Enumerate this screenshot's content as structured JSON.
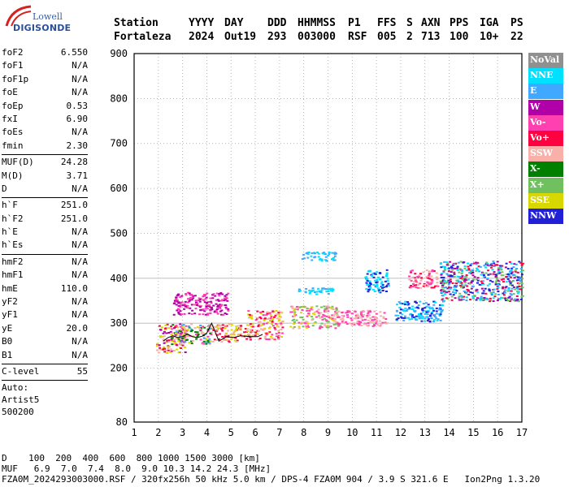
{
  "logo": {
    "line1": "Lowell",
    "line2": "DIGISONDE"
  },
  "header": {
    "labels": [
      "Station",
      "YYYY",
      "DAY",
      "DDD",
      "HHMMSS",
      "P1",
      "FFS",
      "S",
      "AXN",
      "PPS",
      "IGA",
      "PS"
    ],
    "values": [
      "Fortaleza",
      "2024",
      "Out19",
      "293",
      "003000",
      "RSF",
      "005",
      "2",
      "713",
      "100",
      "10+",
      "22"
    ]
  },
  "params": {
    "group1": [
      {
        "k": "foF2",
        "v": "6.550"
      },
      {
        "k": "foF1",
        "v": "N/A"
      },
      {
        "k": "foF1p",
        "v": "N/A"
      },
      {
        "k": "foE",
        "v": "N/A"
      },
      {
        "k": "foEp",
        "v": "0.53"
      },
      {
        "k": "fxI",
        "v": "6.90"
      },
      {
        "k": "foEs",
        "v": "N/A"
      },
      {
        "k": "fmin",
        "v": "2.30"
      }
    ],
    "group2": [
      {
        "k": "MUF(D)",
        "v": "24.28"
      },
      {
        "k": "M(D)",
        "v": "3.71"
      },
      {
        "k": "D",
        "v": "N/A"
      }
    ],
    "group3": [
      {
        "k": "h`F",
        "v": "251.0"
      },
      {
        "k": "h`F2",
        "v": "251.0"
      },
      {
        "k": "h`E",
        "v": "N/A"
      },
      {
        "k": "h`Es",
        "v": "N/A"
      }
    ],
    "group4": [
      {
        "k": "hmF2",
        "v": "N/A"
      },
      {
        "k": "hmF1",
        "v": "N/A"
      },
      {
        "k": "hmE",
        "v": "110.0"
      },
      {
        "k": "yF2",
        "v": "N/A"
      },
      {
        "k": "yF1",
        "v": "N/A"
      },
      {
        "k": "yE",
        "v": "20.0"
      },
      {
        "k": "B0",
        "v": "N/A"
      },
      {
        "k": "B1",
        "v": "N/A"
      }
    ],
    "clevel": {
      "k": "C-level",
      "v": "55"
    },
    "auto": [
      "Auto:",
      "Artist5",
      "500200"
    ]
  },
  "legend": [
    {
      "label": "NoVal",
      "color": "#909090"
    },
    {
      "label": "NNE",
      "color": "#00e0ff"
    },
    {
      "label": "E",
      "color": "#40a8ff"
    },
    {
      "label": "W",
      "color": "#b000a8"
    },
    {
      "label": "Vo-",
      "color": "#ff40b0"
    },
    {
      "label": "Vo+",
      "color": "#ff0040"
    },
    {
      "label": "SSW",
      "color": "#f8b0a8"
    },
    {
      "label": "X-",
      "color": "#008000"
    },
    {
      "label": "X+",
      "color": "#70c060"
    },
    {
      "label": "SSE",
      "color": "#d8d800"
    },
    {
      "label": "NNW",
      "color": "#2020d8"
    }
  ],
  "footer": {
    "line1": "D    100  200  400  600  800 1000 1500 3000 [km]",
    "line2": "MUF   6.9  7.0  7.4  8.0  9.0 10.3 14.2 24.3 [MHz]",
    "line3": "FZA0M_2024293003000.RSF / 320fx256h 50 kHz 5.0 km / DPS-4 FZA0M 904 / 3.9 S 321.6 E   Ion2Png 1.3.20"
  },
  "chart_data": {
    "type": "scatter",
    "x_ticks": [
      1,
      2,
      3,
      4,
      5,
      6,
      7,
      8,
      9,
      10,
      11,
      12,
      13,
      14,
      15,
      16,
      17
    ],
    "y_ticks": [
      80,
      200,
      300,
      400,
      500,
      600,
      700,
      800,
      900
    ],
    "xlim": [
      1,
      17
    ],
    "ylim": [
      80,
      900
    ],
    "grid": true,
    "gridlines_y": [
      300,
      400
    ],
    "clusters": [
      {
        "x": [
          1.9,
          3.1
        ],
        "y": [
          235,
          300
        ],
        "colors": [
          "#ff0040",
          "#b000a8",
          "#d8d800",
          "#f8b0a8"
        ]
      },
      {
        "x": [
          2.5,
          4.2
        ],
        "y": [
          255,
          300
        ],
        "colors": [
          "#d8d800",
          "#ff40b0",
          "#008000",
          "#40a8ff",
          "#f8b0a8"
        ]
      },
      {
        "x": [
          2.6,
          4.9
        ],
        "y": [
          320,
          370
        ],
        "colors": [
          "#b000a8",
          "#ff40b0"
        ]
      },
      {
        "x": [
          4.2,
          5.6
        ],
        "y": [
          260,
          300
        ],
        "colors": [
          "#f8b0a8",
          "#d8d800",
          "#ff0040"
        ]
      },
      {
        "x": [
          5.6,
          7.1
        ],
        "y": [
          265,
          330
        ],
        "colors": [
          "#f8b0a8",
          "#d8d800",
          "#ff40b0",
          "#ff0040"
        ]
      },
      {
        "x": [
          7.4,
          9.4
        ],
        "y": [
          290,
          340
        ],
        "colors": [
          "#f8b0a8",
          "#d8d800",
          "#70c060",
          "#ff40b0"
        ]
      },
      {
        "x": [
          7.6,
          9.2
        ],
        "y": [
          365,
          380
        ],
        "colors": [
          "#00e0ff",
          "#40a8ff"
        ]
      },
      {
        "x": [
          7.9,
          9.3
        ],
        "y": [
          440,
          460
        ],
        "colors": [
          "#00e0ff",
          "#40a8ff"
        ]
      },
      {
        "x": [
          9.2,
          11.4
        ],
        "y": [
          295,
          330
        ],
        "colors": [
          "#f8b0a8",
          "#ff40b0"
        ]
      },
      {
        "x": [
          10.5,
          11.5
        ],
        "y": [
          370,
          420
        ],
        "colors": [
          "#2020d8",
          "#00e0ff"
        ]
      },
      {
        "x": [
          11.7,
          13.7
        ],
        "y": [
          305,
          350
        ],
        "colors": [
          "#2020d8",
          "#40a8ff",
          "#00e0ff"
        ]
      },
      {
        "x": [
          12.3,
          13.5
        ],
        "y": [
          380,
          420
        ],
        "colors": [
          "#ff40b0",
          "#ff0040",
          "#f8b0a8"
        ]
      },
      {
        "x": [
          13.6,
          17.0
        ],
        "y": [
          350,
          440
        ],
        "colors": [
          "#40a8ff",
          "#2020d8",
          "#b000a8",
          "#00e0ff",
          "#ff0040",
          "#70c060"
        ]
      }
    ],
    "trace": {
      "x": [
        2.2,
        2.4,
        2.6,
        2.8,
        3.0,
        3.2,
        3.4,
        3.6,
        3.8,
        4.0,
        4.2,
        4.5,
        4.8,
        5.1,
        5.4,
        5.8,
        6.1,
        6.3
      ],
      "y": [
        260,
        268,
        272,
        268,
        270,
        276,
        270,
        268,
        271,
        278,
        300,
        260,
        270,
        268,
        272,
        270,
        270,
        275
      ],
      "color": "#000000"
    }
  }
}
